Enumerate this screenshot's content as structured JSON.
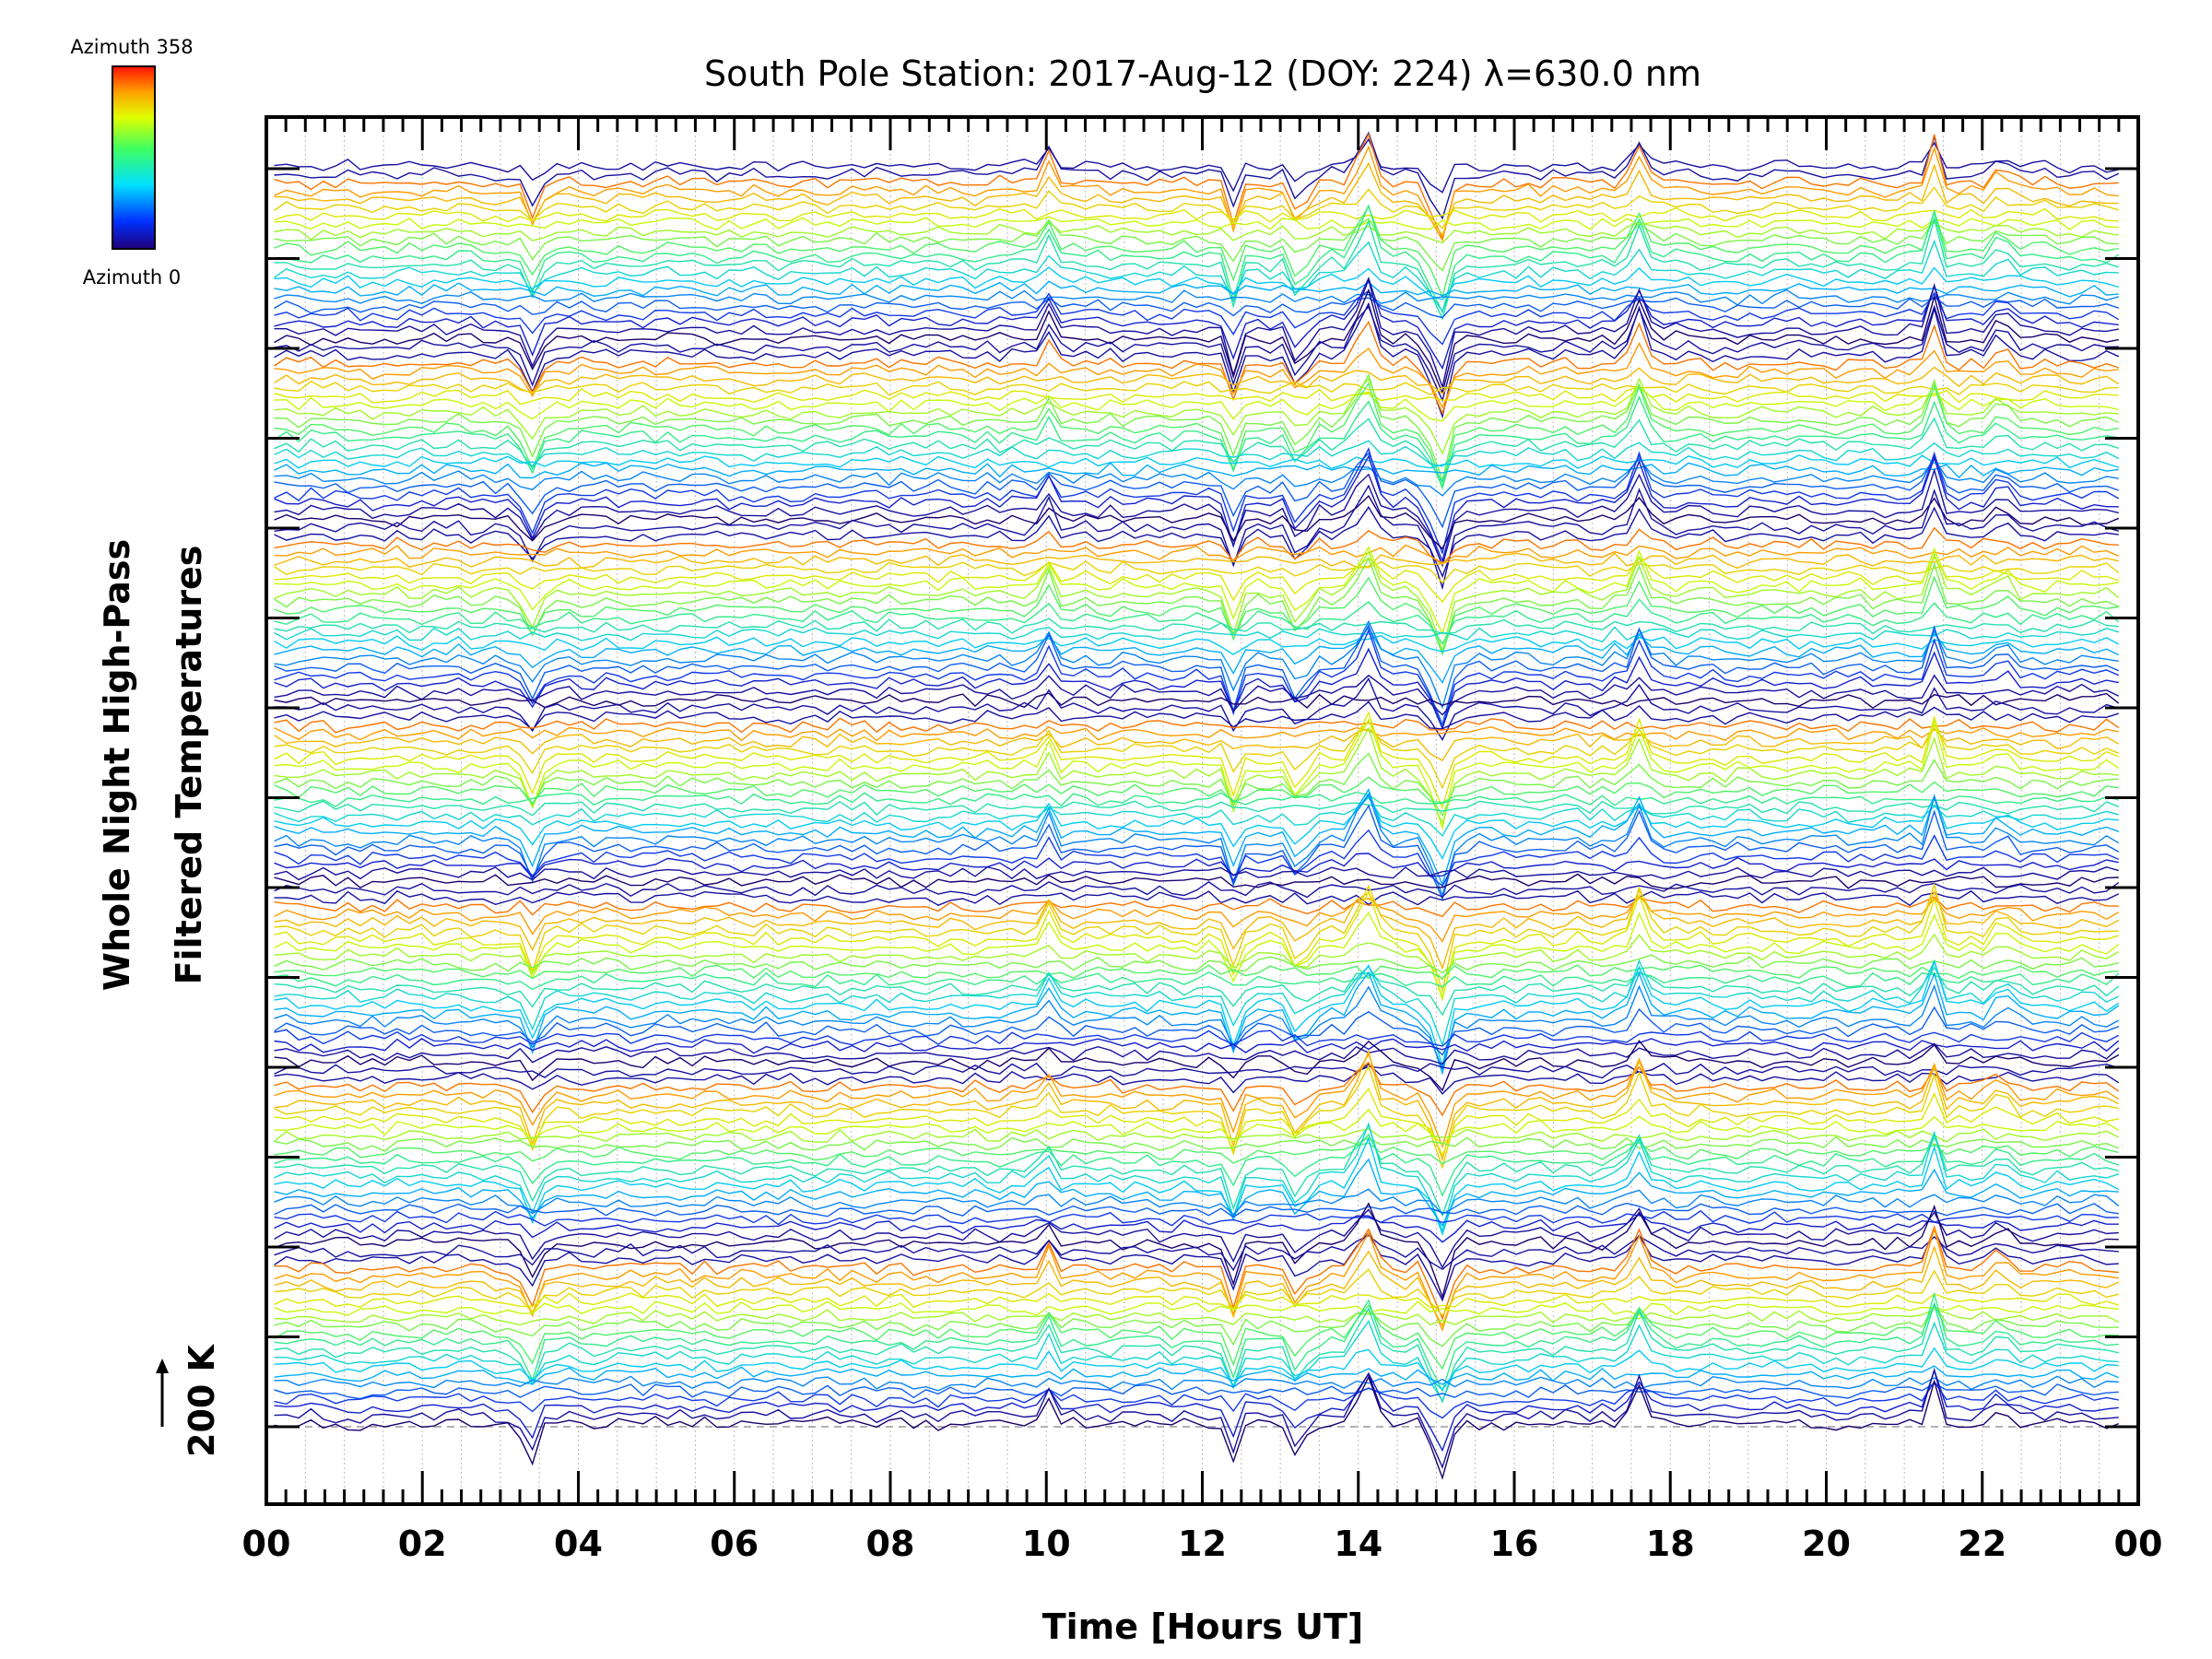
{
  "chart_data": {
    "type": "line",
    "title": "South Pole Station: 2017-Aug-12 (DOY: 224) λ=630.0 nm",
    "xlabel": "Time [Hours UT]",
    "ylabel_line1": "Whole Night High-Pass",
    "ylabel_line2": "Filtered Temperatures",
    "scale_label": "200 K",
    "x_unit": "hours UT",
    "xlim": [
      0,
      24
    ],
    "x_tick_labels": [
      "00",
      "02",
      "04",
      "06",
      "08",
      "10",
      "12",
      "14",
      "16",
      "18",
      "20",
      "22",
      "00"
    ],
    "colorbar": {
      "top_label": "Azimuth 358",
      "bottom_label": "Azimuth 0",
      "azimuth_range": [
        0,
        358
      ],
      "colormap": "rainbow (blue to red)"
    },
    "grid": "vertical dotted lines every 0.5 h",
    "stack": {
      "n_groups": 7,
      "traces_per_group": 22,
      "description": "stacked high-pass filtered temperature traces, colored by azimuth, offset vertically"
    },
    "events": [
      {
        "time": 3.4,
        "amplitude": -0.7,
        "width": 0.12
      },
      {
        "time": 10.0,
        "amplitude": 0.6,
        "width": 0.09
      },
      {
        "time": 12.4,
        "amplitude": -0.8,
        "width": 0.08
      },
      {
        "time": 13.25,
        "amplitude": -1.1,
        "width": 0.08
      },
      {
        "time": 14.1,
        "amplitude": 1.0,
        "width": 0.14
      },
      {
        "time": 15.05,
        "amplitude": -1.2,
        "width": 0.13
      },
      {
        "time": 17.6,
        "amplitude": 0.8,
        "width": 0.12
      },
      {
        "time": 21.35,
        "amplitude": 1.1,
        "width": 0.07
      },
      {
        "time": 22.25,
        "amplitude": 1.0,
        "width": 0.07
      }
    ],
    "colors": {
      "axis": "#000000",
      "grid": "#bbbbbb",
      "baseline": "#999999"
    }
  }
}
